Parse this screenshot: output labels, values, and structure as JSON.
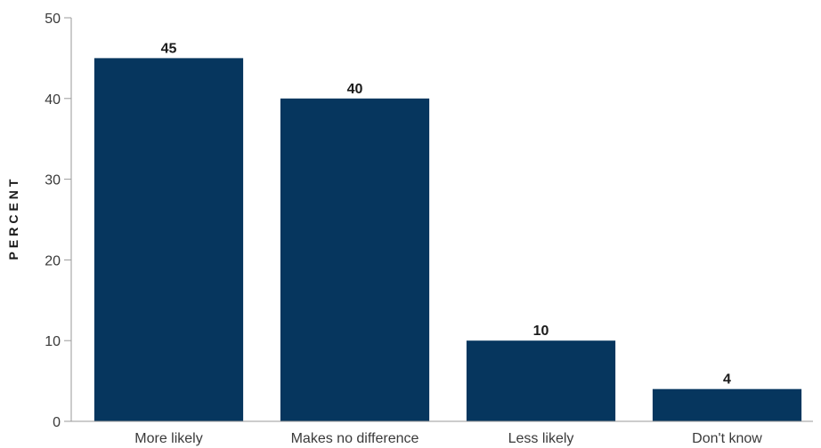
{
  "chart_data": {
    "type": "bar",
    "title": "",
    "xlabel": "",
    "ylabel": "PERCENT",
    "categories": [
      "More likely",
      "Makes no difference",
      "Less likely",
      "Don't know"
    ],
    "values": [
      45,
      40,
      10,
      4
    ],
    "data_labels": [
      "45",
      "40",
      "10",
      "4"
    ],
    "ylim": [
      0,
      50
    ],
    "yticks": [
      0,
      10,
      20,
      30,
      40,
      50
    ],
    "ytick_labels": [
      "0",
      "10",
      "20",
      "30",
      "40",
      "50"
    ],
    "grid": false,
    "legend": "none",
    "bar_color": "#06365e"
  }
}
